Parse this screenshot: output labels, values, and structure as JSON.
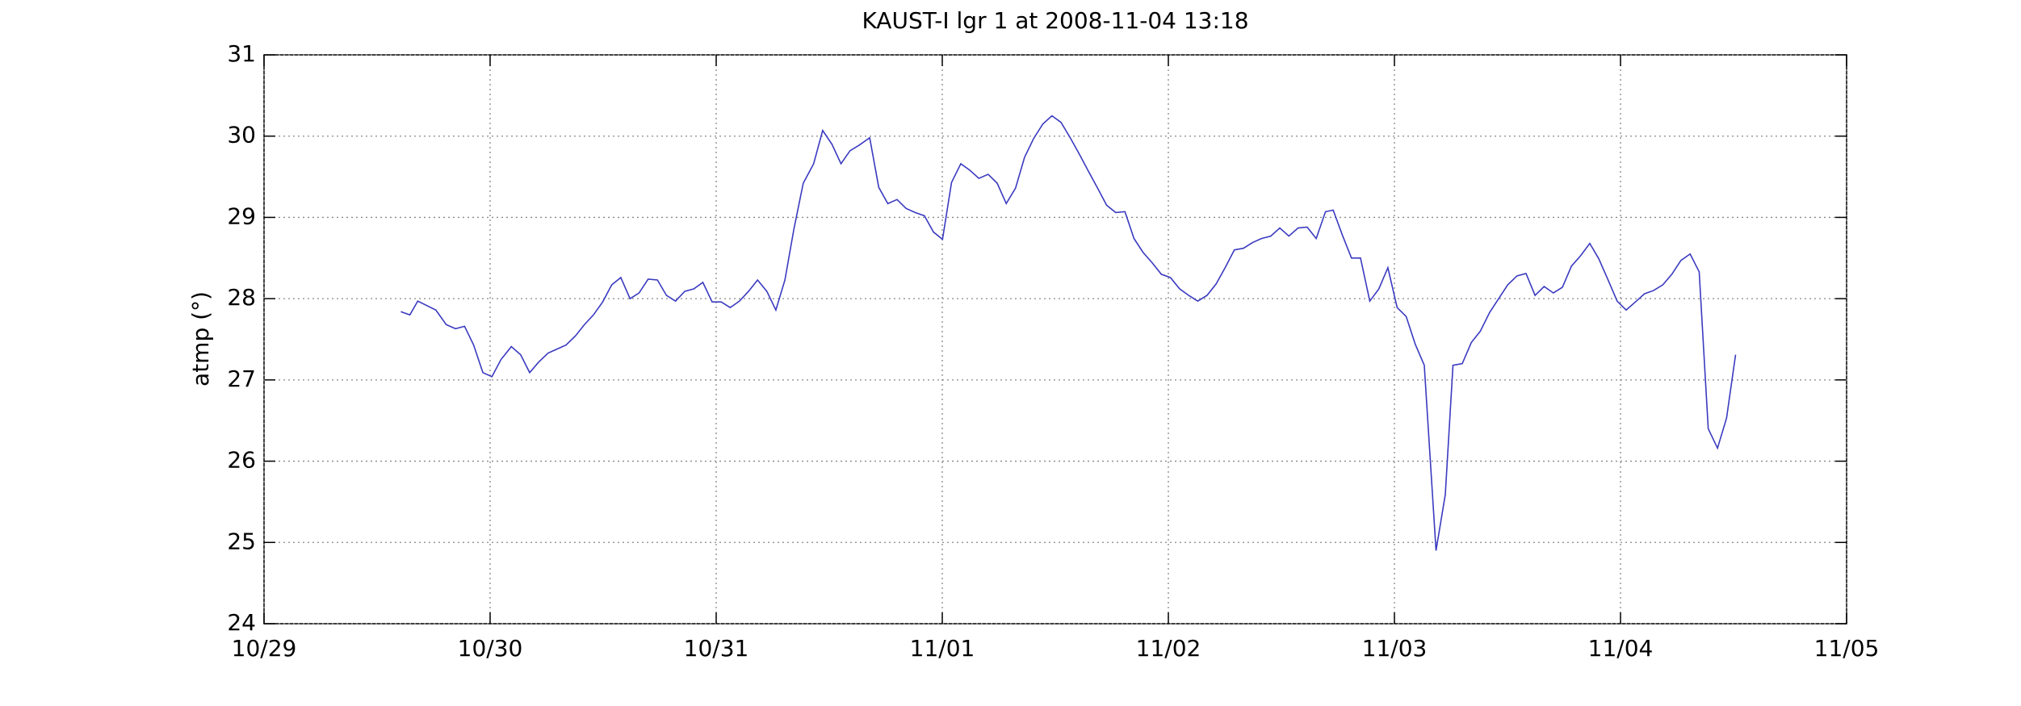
{
  "chart_data": {
    "type": "line",
    "title": "KAUST-I lgr 1 at 2008-11-04 13:18",
    "ylabel": "atmp (°)",
    "x": [
      0.605,
      0.645,
      0.68,
      0.76,
      0.806,
      0.847,
      0.887,
      0.927,
      0.968,
      1.008,
      1.048,
      1.094,
      1.135,
      1.175,
      1.215,
      1.256,
      1.296,
      1.336,
      1.377,
      1.417,
      1.457,
      1.498,
      1.538,
      1.578,
      1.619,
      1.659,
      1.699,
      1.74,
      1.78,
      1.82,
      1.861,
      1.901,
      1.941,
      1.982,
      2.022,
      2.062,
      2.103,
      2.143,
      2.183,
      2.224,
      2.264,
      2.304,
      2.344,
      2.385,
      2.431,
      2.471,
      2.512,
      2.552,
      2.592,
      2.633,
      2.679,
      2.719,
      2.759,
      2.8,
      2.84,
      2.88,
      2.921,
      2.961,
      3.001,
      3.041,
      3.082,
      3.122,
      3.162,
      3.203,
      3.243,
      3.283,
      3.324,
      3.364,
      3.404,
      3.445,
      3.485,
      3.525,
      3.566,
      3.606,
      3.646,
      3.687,
      3.727,
      3.767,
      3.808,
      3.848,
      3.888,
      3.929,
      3.969,
      4.009,
      4.05,
      4.09,
      4.13,
      4.171,
      4.211,
      4.251,
      4.292,
      4.332,
      4.372,
      4.412,
      4.453,
      4.493,
      4.533,
      4.574,
      4.614,
      4.654,
      4.695,
      4.729,
      4.77,
      4.81,
      4.85,
      4.891,
      4.931,
      4.971,
      5.012,
      5.052,
      5.092,
      5.132,
      5.184,
      5.225,
      5.259,
      5.3,
      5.34,
      5.38,
      5.421,
      5.461,
      5.501,
      5.542,
      5.582,
      5.622,
      5.662,
      5.703,
      5.743,
      5.783,
      5.824,
      5.864,
      5.904,
      5.945,
      5.985,
      6.025,
      6.066,
      6.106,
      6.146,
      6.187,
      6.227,
      6.267,
      6.308,
      6.348,
      6.388,
      6.429,
      6.469,
      6.509
    ],
    "series": [
      {
        "color": "#3a3ac0",
        "values": [
          27.84,
          27.8,
          27.97,
          27.86,
          27.68,
          27.63,
          27.66,
          27.43,
          27.09,
          27.04,
          27.25,
          27.41,
          27.31,
          27.09,
          27.22,
          27.33,
          27.38,
          27.43,
          27.54,
          27.68,
          27.8,
          27.96,
          28.17,
          28.26,
          28.0,
          28.07,
          28.24,
          28.23,
          28.04,
          27.97,
          28.09,
          28.12,
          28.2,
          27.96,
          27.96,
          27.89,
          27.97,
          28.09,
          28.23,
          28.09,
          27.86,
          28.23,
          28.86,
          29.42,
          29.66,
          30.07,
          29.9,
          29.66,
          29.82,
          29.89,
          29.98,
          29.37,
          29.17,
          29.22,
          29.11,
          29.06,
          29.02,
          28.82,
          28.73,
          29.43,
          29.66,
          29.58,
          29.48,
          29.53,
          29.42,
          29.17,
          29.36,
          29.74,
          29.97,
          30.15,
          30.25,
          30.17,
          29.98,
          29.78,
          29.57,
          29.36,
          29.15,
          29.06,
          29.07,
          28.74,
          28.57,
          28.44,
          28.3,
          28.26,
          28.12,
          28.04,
          27.97,
          28.04,
          28.18,
          28.38,
          28.6,
          28.62,
          28.69,
          28.74,
          28.77,
          28.87,
          28.77,
          28.87,
          28.88,
          28.74,
          29.07,
          29.09,
          28.78,
          28.5,
          28.5,
          27.97,
          28.12,
          28.38,
          27.89,
          27.78,
          27.44,
          27.18,
          24.9,
          25.59,
          27.18,
          27.2,
          27.46,
          27.6,
          27.83,
          28.0,
          28.17,
          28.28,
          28.31,
          28.04,
          28.15,
          28.07,
          28.14,
          28.4,
          28.53,
          28.68,
          28.49,
          28.23,
          27.97,
          27.86,
          27.96,
          28.06,
          28.1,
          28.17,
          28.3,
          28.47,
          28.55,
          28.33,
          26.4,
          26.16,
          26.53,
          27.31
        ]
      }
    ],
    "xlim": [
      0,
      7
    ],
    "xticks": [
      {
        "value": 0,
        "label": "10/29"
      },
      {
        "value": 1,
        "label": "10/30"
      },
      {
        "value": 2,
        "label": "10/31"
      },
      {
        "value": 3,
        "label": "11/01"
      },
      {
        "value": 4,
        "label": "11/02"
      },
      {
        "value": 5,
        "label": "11/03"
      },
      {
        "value": 6,
        "label": "11/04"
      },
      {
        "value": 7,
        "label": "11/05"
      }
    ],
    "ylim": [
      24,
      31
    ],
    "yticks": [
      24,
      25,
      26,
      27,
      28,
      29,
      30,
      31
    ],
    "grid": true
  }
}
